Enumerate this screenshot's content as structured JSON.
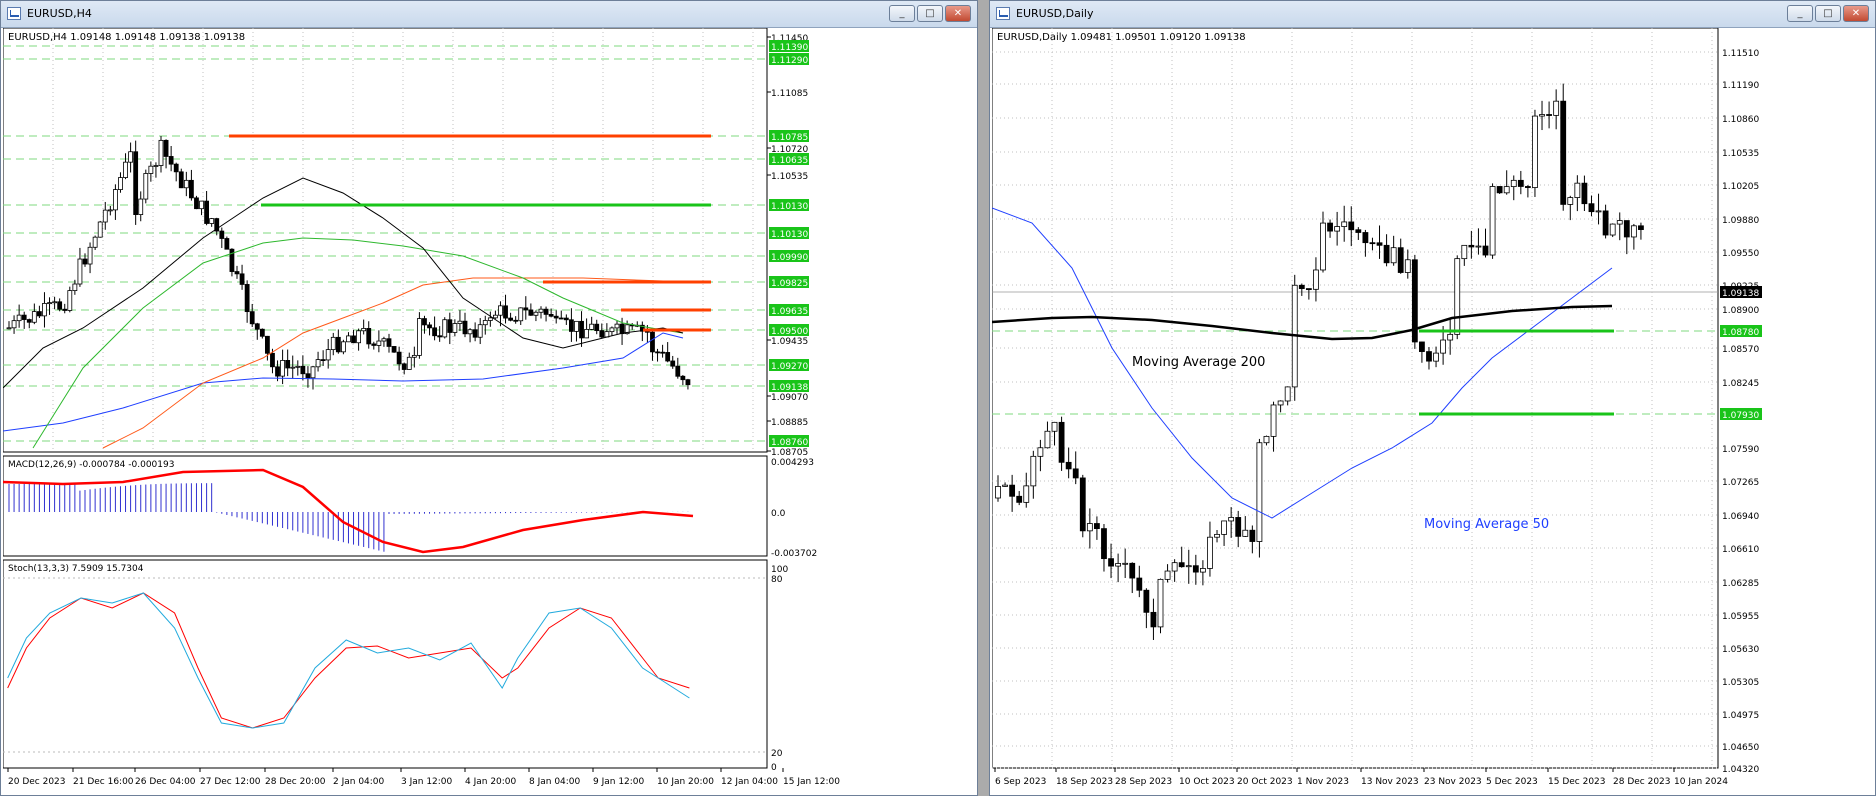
{
  "left_window": {
    "title": "EURUSD,H4",
    "chart_label": "EURUSD,H4  1.09148 1.09148 1.09138 1.09138",
    "price_axis": [
      "1.11450",
      "1.11390",
      "1.11290",
      "1.11085",
      "1.10785",
      "1.10720",
      "1.10635",
      "1.10535",
      "1.10130",
      "1.10130",
      "1.09990",
      "1.09825",
      "1.09635",
      "1.09500",
      "1.09435",
      "1.09270",
      "1.09138",
      "1.09070",
      "1.08885",
      "1.08760",
      "1.08705"
    ],
    "highlight_prices": [
      "1.11390",
      "1.11290",
      "1.10785",
      "1.10635",
      "1.10130",
      "1.10130",
      "1.09990",
      "1.09825",
      "1.09635",
      "1.09500",
      "1.09270",
      "1.09138",
      "1.08760"
    ],
    "macd_label": "MACD(12,26,9) -0.000784 -0.000193",
    "macd_axis": [
      "0.004293",
      "0.0",
      "-0.003702"
    ],
    "stoch_label": "Stoch(13,3,3) 7.5909 15.7304",
    "stoch_axis": [
      "100",
      "80",
      "20",
      "0"
    ],
    "time_axis": [
      "20 Dec 2023",
      "21 Dec 16:00",
      "26 Dec 04:00",
      "27 Dec 12:00",
      "28 Dec 20:00",
      "2 Jan 04:00",
      "3 Jan 12:00",
      "4 Jan 20:00",
      "8 Jan 04:00",
      "9 Jan 12:00",
      "10 Jan 20:00",
      "12 Jan 04:00",
      "15 Jan 12:00"
    ]
  },
  "right_window": {
    "title": "EURUSD,Daily",
    "chart_label": "EURUSD,Daily  1.09481 1.09501 1.09120 1.09138",
    "price_axis": [
      "1.11510",
      "1.11190",
      "1.10860",
      "1.10535",
      "1.10205",
      "1.09880",
      "1.09550",
      "1.09225",
      "1.09138",
      "1.08900",
      "1.08780",
      "1.08570",
      "1.08245",
      "1.07930",
      "1.07590",
      "1.07265",
      "1.06940",
      "1.06610",
      "1.06285",
      "1.05955",
      "1.05630",
      "1.05305",
      "1.04975",
      "1.04650",
      "1.04320"
    ],
    "highlight_prices": [
      "1.09138",
      "1.08780",
      "1.07930"
    ],
    "annotations": [
      "Moving Average 200",
      "Moving Average 50"
    ],
    "time_axis": [
      "6 Sep 2023",
      "18 Sep 2023",
      "28 Sep 2023",
      "10 Oct 2023",
      "20 Oct 2023",
      "1 Nov 2023",
      "13 Nov 2023",
      "23 Nov 2023",
      "5 Dec 2023",
      "15 Dec 2023",
      "28 Dec 2023",
      "10 Jan 2024"
    ]
  },
  "window_buttons": {
    "minimize": "_",
    "maximize": "□",
    "close": "✕"
  },
  "colors": {
    "resistance": "#ff4000",
    "support": "#19c419",
    "ma_blue": "#1f3fff",
    "ma_black": "#000000",
    "ma_green": "#2eb82e",
    "ma_orange": "#ff5a1a",
    "macd_hist": "#3030d0",
    "macd_signal": "#ff0000",
    "stoch_main": "#22aadd",
    "stoch_signal": "#ff0000",
    "grid": "#c0c0c0",
    "highlight_label_bg": "#19c419"
  }
}
